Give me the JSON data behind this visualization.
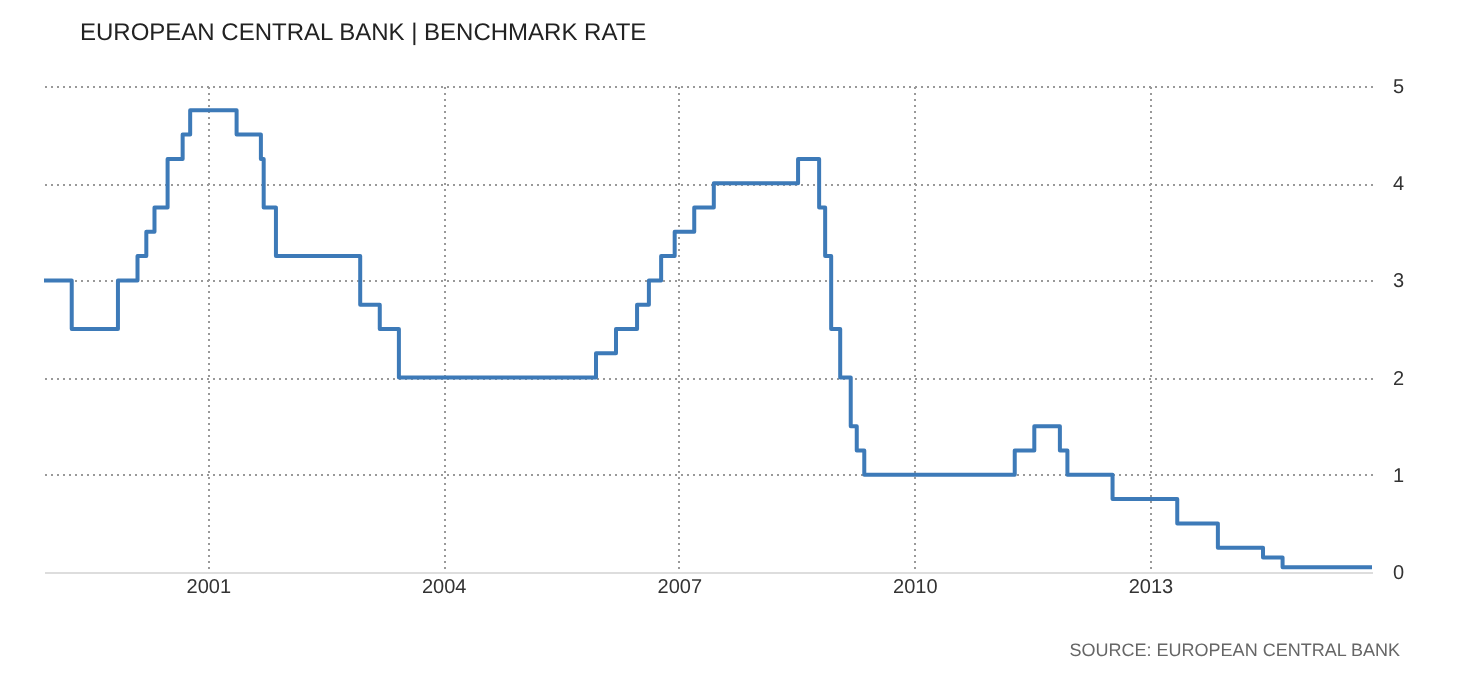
{
  "chart_data": {
    "type": "step",
    "title": "EUROPEAN CENTRAL BANK | BENCHMARK RATE",
    "annotations": [
      "SOURCE: EUROPEAN CENTRAL BANK"
    ],
    "x": [
      "1998-12-01",
      "1999-04-09",
      "1999-11-10",
      "2000-02-09",
      "2000-03-21",
      "2000-04-28",
      "2000-06-28",
      "2000-09-06",
      "2000-10-11",
      "2001-05-15",
      "2001-09-05",
      "2001-09-18",
      "2001-11-14",
      "2002-12-11",
      "2003-03-12",
      "2003-06-09",
      "2005-12-12",
      "2006-03-15",
      "2006-06-21",
      "2006-08-15",
      "2006-10-11",
      "2006-12-13",
      "2007-03-14",
      "2007-06-13",
      "2008-07-09",
      "2008-10-15",
      "2008-11-12",
      "2008-12-10",
      "2009-01-21",
      "2009-03-11",
      "2009-04-08",
      "2009-05-13",
      "2011-04-13",
      "2011-07-13",
      "2011-11-09",
      "2011-12-14",
      "2012-07-11",
      "2013-05-08",
      "2013-11-13",
      "2014-06-11",
      "2014-09-10",
      "2015-10-31"
    ],
    "series": [
      {
        "color": "#3d7ab8",
        "values": [
          3,
          2.5,
          3,
          3.25,
          3.5,
          3.75,
          4.25,
          4.5,
          4.75,
          4.5,
          4.25,
          3.75,
          3.25,
          2.75,
          2.5,
          2,
          2.25,
          2.5,
          2.75,
          3,
          3.25,
          3.5,
          3.75,
          4,
          4.25,
          3.75,
          3.25,
          2.5,
          2,
          1.5,
          1.25,
          1,
          1.25,
          1.5,
          1.25,
          1,
          0.75,
          0.5,
          0.25,
          0.15,
          0.05,
          0.05
        ]
      }
    ],
    "xlim": [
      "1998-12-01",
      "2015-10-31"
    ],
    "xticks": [
      "2001",
      "2004",
      "2007",
      "2010",
      "2013"
    ],
    "ylim": [
      0,
      5
    ],
    "yticks": [
      0,
      1,
      2,
      3,
      4,
      5
    ],
    "grid": true
  }
}
